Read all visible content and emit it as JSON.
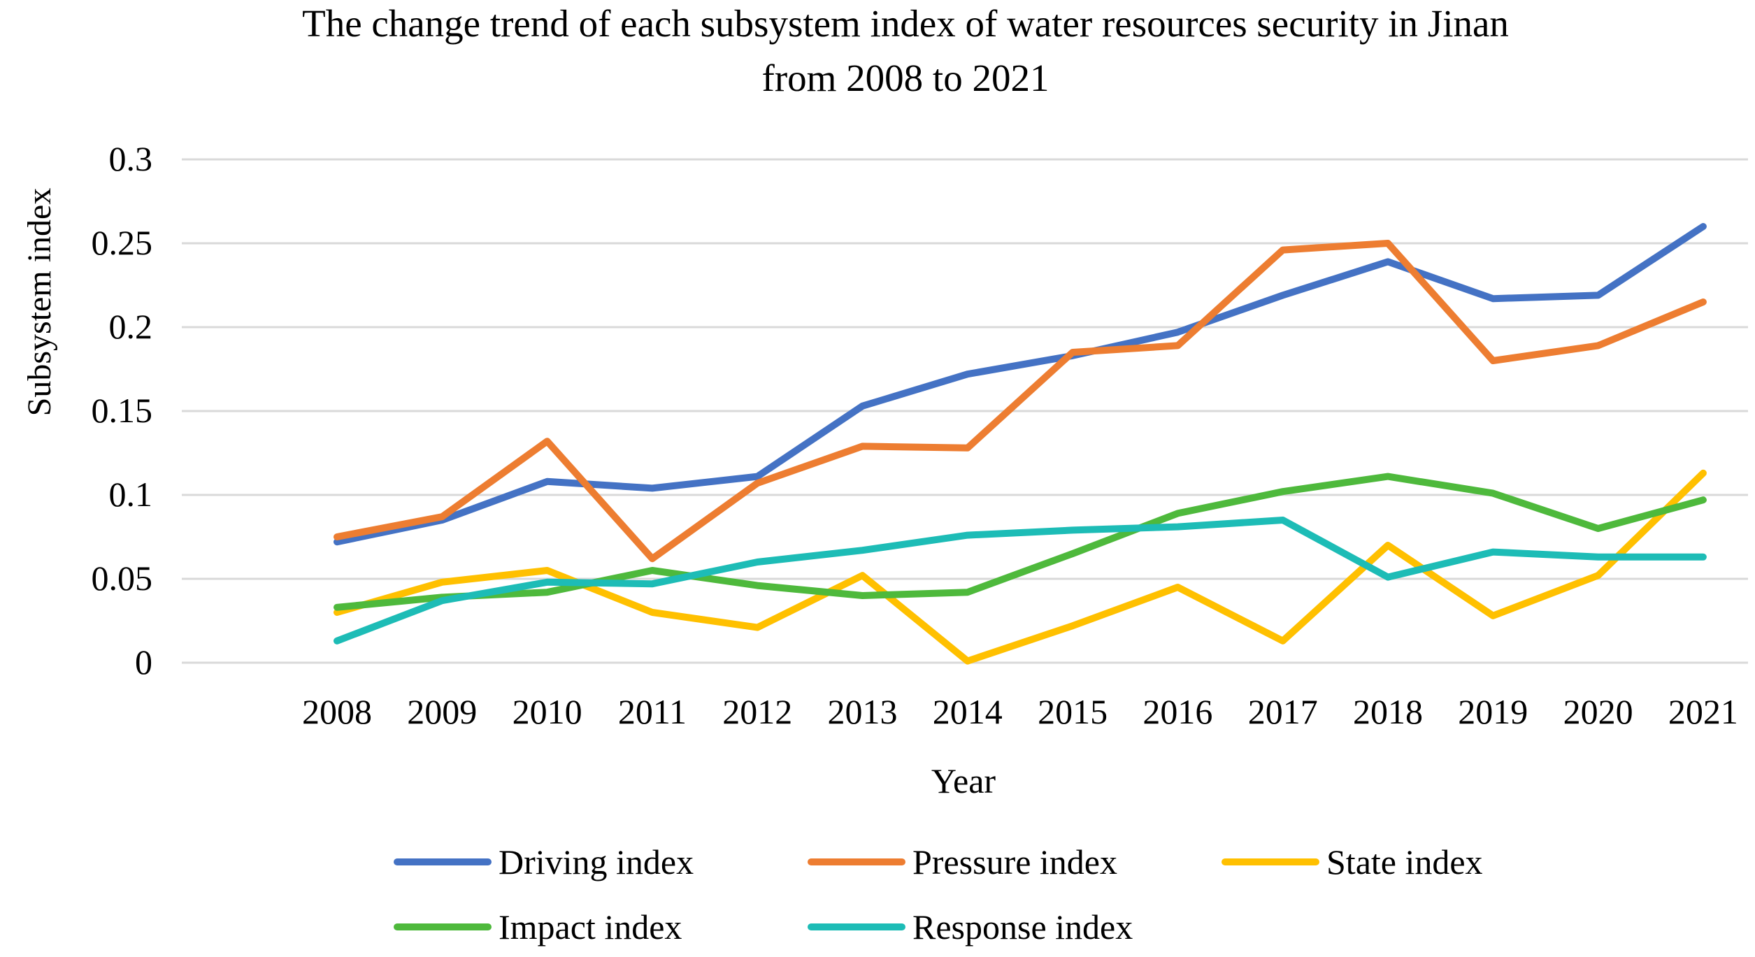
{
  "chart_data": {
    "type": "line",
    "title_lines": [
      "The change trend of each subsystem index of water resources security in Jinan",
      "from 2008 to 2021"
    ],
    "xlabel": "Year",
    "ylabel": "Subsystem index",
    "categories": [
      "2008",
      "2009",
      "2010",
      "2011",
      "2012",
      "2013",
      "2014",
      "2015",
      "2016",
      "2017",
      "2018",
      "2019",
      "2020",
      "2021"
    ],
    "ylim": [
      0,
      0.3
    ],
    "yticks": [
      0,
      0.05,
      0.1,
      0.15,
      0.2,
      0.25,
      0.3
    ],
    "ytick_labels": [
      "0",
      "0.05",
      "0.1",
      "0.15",
      "0.2",
      "0.25",
      "0.3"
    ],
    "grid": true,
    "legend_position": "bottom",
    "series": [
      {
        "name": "Driving index",
        "color": "#4472C4",
        "values": [
          0.072,
          0.085,
          0.108,
          0.104,
          0.111,
          0.153,
          0.172,
          0.183,
          0.197,
          0.219,
          0.239,
          0.217,
          0.219,
          0.26
        ]
      },
      {
        "name": "Pressure index",
        "color": "#ED7D31",
        "values": [
          0.075,
          0.087,
          0.132,
          0.062,
          0.107,
          0.129,
          0.128,
          0.185,
          0.189,
          0.246,
          0.25,
          0.18,
          0.189,
          0.215
        ]
      },
      {
        "name": "State index",
        "color": "#FFC000",
        "values": [
          0.03,
          0.048,
          0.055,
          0.03,
          0.021,
          0.052,
          0.001,
          0.022,
          0.045,
          0.013,
          0.07,
          0.028,
          0.052,
          0.113
        ]
      },
      {
        "name": "Impact index",
        "color": "#4EB93C",
        "values": [
          0.033,
          0.039,
          0.042,
          0.055,
          0.046,
          0.04,
          0.042,
          0.065,
          0.089,
          0.102,
          0.111,
          0.101,
          0.08,
          0.097
        ]
      },
      {
        "name": "Response index",
        "color": "#1DBCB6",
        "values": [
          0.013,
          0.037,
          0.048,
          0.047,
          0.06,
          0.067,
          0.076,
          0.079,
          0.081,
          0.085,
          0.051,
          0.066,
          0.063,
          0.063
        ]
      }
    ]
  }
}
